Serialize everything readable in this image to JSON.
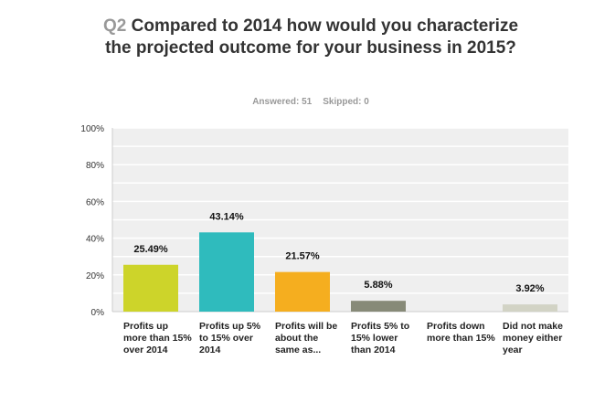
{
  "header": {
    "question_number": "Q2",
    "title": "Compared to 2014 how would you characterize the projected outcome for your business in 2015?",
    "answered": "Answered: 51",
    "skipped": "Skipped: 0"
  },
  "chart_data": {
    "type": "bar",
    "categories": [
      "Profits up more than 15% over 2014",
      "Profits up 5% to 15% over 2014",
      "Profits will be about the same as...",
      "Profits 5% to 15% lower than 2014",
      "Profits down more than 15%",
      "Did not make money either year"
    ],
    "values": [
      25.49,
      43.14,
      21.57,
      5.88,
      0,
      3.92
    ],
    "data_labels": [
      "25.49%",
      "43.14%",
      "21.57%",
      "5.88%",
      "",
      "3.92%"
    ],
    "colors": [
      "#cdd42a",
      "#2fbbbd",
      "#f5ae1f",
      "#878a78",
      "#999999",
      "#d2d3c5"
    ],
    "ylim": [
      0,
      100
    ],
    "yticks": [
      "0%",
      "20%",
      "40%",
      "60%",
      "80%",
      "100%"
    ],
    "grid": true,
    "legend": "none"
  }
}
